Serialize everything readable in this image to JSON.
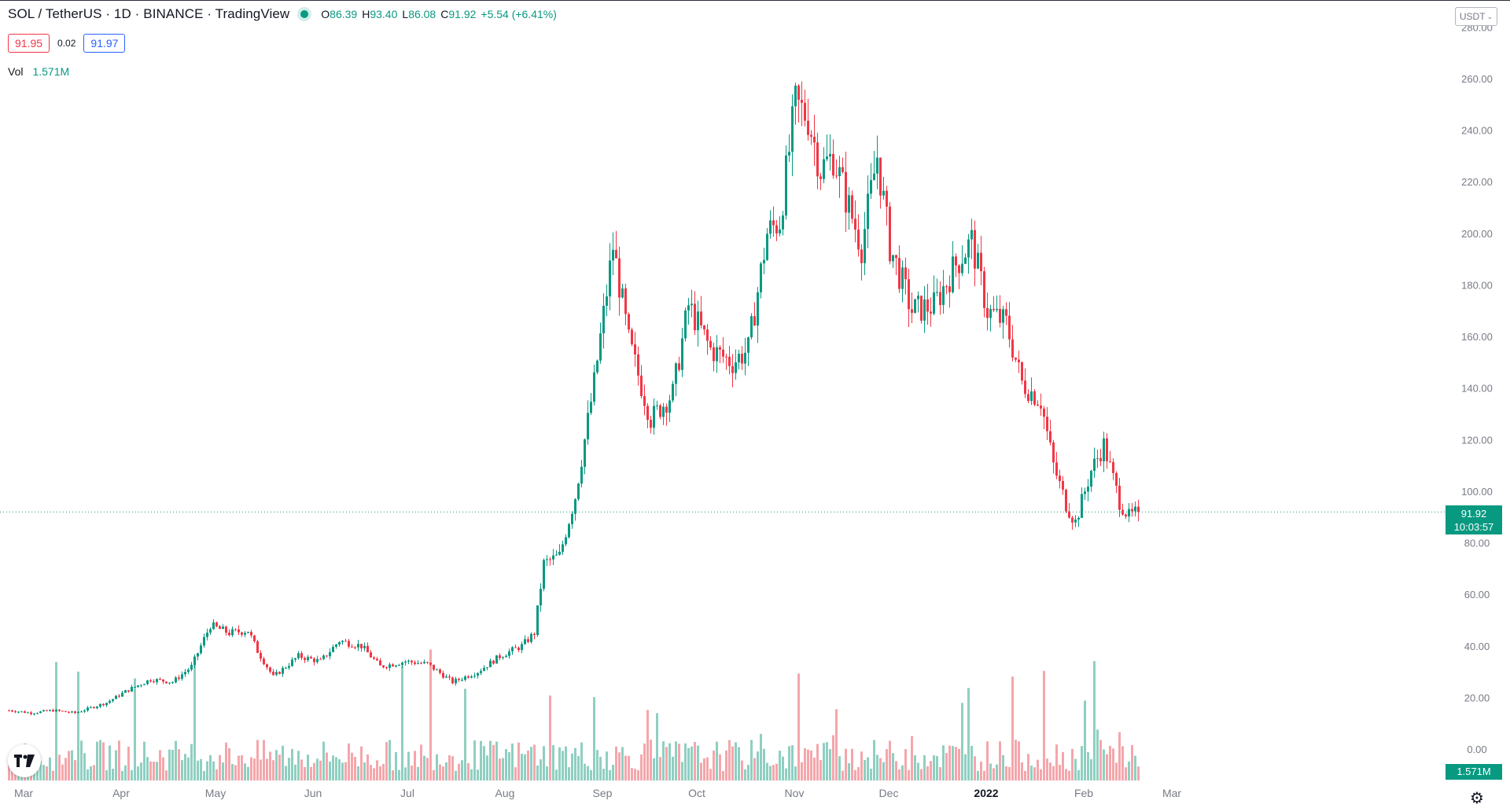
{
  "header": {
    "symbol": "SOL / TetherUS · 1D · BINANCE · TradingView",
    "o_label": "O",
    "o_value": "86.39",
    "h_label": "H",
    "h_value": "93.40",
    "l_label": "L",
    "l_value": "86.08",
    "c_label": "C",
    "c_value": "91.92",
    "change": "+5.54 (+6.41%)"
  },
  "quote": {
    "bid": "91.95",
    "spread": "0.02",
    "ask": "91.97"
  },
  "volume_legend": {
    "label": "Vol",
    "value": "1.571M"
  },
  "currency_button": {
    "label": "USDT",
    "icon": "chevron-down-icon"
  },
  "price_badge": {
    "price": "91.92",
    "countdown": "10:03:57"
  },
  "volume_badge": "1.571M",
  "colors": {
    "up": "#089981",
    "down": "#f23645",
    "up_volume": "#8fcfc1",
    "down_volume": "#f4a6ab",
    "grid_text": "#787b86"
  },
  "chart_data": {
    "type": "candlestick",
    "title": "SOL / TetherUS",
    "interval": "1D",
    "exchange": "BINANCE",
    "xlabel": "",
    "ylabel": "",
    "ylim": [
      0,
      280
    ],
    "y_ticks": [
      "280.00",
      "260.00",
      "240.00",
      "220.00",
      "200.00",
      "180.00",
      "160.00",
      "140.00",
      "120.00",
      "100.00",
      "80.00",
      "60.00",
      "40.00",
      "20.00",
      "0.00"
    ],
    "x_ticks": [
      "Mar",
      "Apr",
      "May",
      "Jun",
      "Jul",
      "Aug",
      "Sep",
      "Oct",
      "Nov",
      "Dec",
      "2022",
      "Feb",
      "Mar"
    ],
    "x_tick_dates": [
      "2021-03-01",
      "2021-04-01",
      "2021-05-01",
      "2021-06-01",
      "2021-07-01",
      "2021-08-01",
      "2021-09-01",
      "2021-10-01",
      "2021-11-01",
      "2021-12-01",
      "2022-01-01",
      "2022-02-01",
      "2022-03-01"
    ],
    "date_range": [
      "2021-03-01",
      "2022-02-23"
    ],
    "last_price": 91.92,
    "grid": false,
    "close_anchors": [
      [
        "2021-03-01",
        15
      ],
      [
        "2021-03-08",
        14
      ],
      [
        "2021-03-15",
        15
      ],
      [
        "2021-03-22",
        14
      ],
      [
        "2021-04-01",
        18
      ],
      [
        "2021-04-08",
        23
      ],
      [
        "2021-04-15",
        27
      ],
      [
        "2021-04-22",
        26
      ],
      [
        "2021-04-28",
        32
      ],
      [
        "2021-05-04",
        48
      ],
      [
        "2021-05-10",
        45
      ],
      [
        "2021-05-16",
        46
      ],
      [
        "2021-05-19",
        38
      ],
      [
        "2021-05-24",
        28
      ],
      [
        "2021-06-01",
        36
      ],
      [
        "2021-06-08",
        34
      ],
      [
        "2021-06-14",
        42
      ],
      [
        "2021-06-21",
        40
      ],
      [
        "2021-06-27",
        32
      ],
      [
        "2021-07-05",
        34
      ],
      [
        "2021-07-12",
        33
      ],
      [
        "2021-07-20",
        26
      ],
      [
        "2021-07-28",
        30
      ],
      [
        "2021-08-04",
        36
      ],
      [
        "2021-08-11",
        40
      ],
      [
        "2021-08-15",
        45
      ],
      [
        "2021-08-18",
        72
      ],
      [
        "2021-08-23",
        75
      ],
      [
        "2021-08-28",
        98
      ],
      [
        "2021-09-03",
        142
      ],
      [
        "2021-09-09",
        195
      ],
      [
        "2021-09-14",
        158
      ],
      [
        "2021-09-21",
        128
      ],
      [
        "2021-09-28",
        138
      ],
      [
        "2021-10-03",
        172
      ],
      [
        "2021-10-10",
        155
      ],
      [
        "2021-10-17",
        150
      ],
      [
        "2021-10-22",
        155
      ],
      [
        "2021-10-28",
        200
      ],
      [
        "2021-11-01",
        205
      ],
      [
        "2021-11-06",
        250
      ],
      [
        "2021-11-10",
        245
      ],
      [
        "2021-11-14",
        225
      ],
      [
        "2021-11-18",
        230
      ],
      [
        "2021-11-23",
        210
      ],
      [
        "2021-11-27",
        195
      ],
      [
        "2021-12-02",
        230
      ],
      [
        "2021-12-06",
        195
      ],
      [
        "2021-12-13",
        170
      ],
      [
        "2021-12-20",
        172
      ],
      [
        "2021-12-27",
        188
      ],
      [
        "2022-01-01",
        197
      ],
      [
        "2022-01-06",
        170
      ],
      [
        "2022-01-12",
        165
      ],
      [
        "2022-01-17",
        142
      ],
      [
        "2022-01-23",
        135
      ],
      [
        "2022-01-27",
        110
      ],
      [
        "2022-01-31",
        95
      ],
      [
        "2022-02-03",
        88
      ],
      [
        "2022-02-08",
        108
      ],
      [
        "2022-02-12",
        118
      ],
      [
        "2022-02-17",
        96
      ],
      [
        "2022-02-20",
        90
      ],
      [
        "2022-02-23",
        91.92
      ]
    ]
  }
}
